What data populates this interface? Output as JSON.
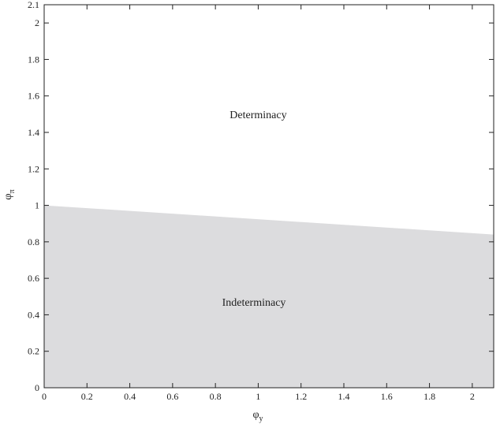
{
  "chart_data": {
    "type": "area",
    "xlabel": "φ",
    "xlabel_sub": "y",
    "ylabel": "φ",
    "ylabel_sub": "π",
    "xlim": [
      0,
      2.1
    ],
    "ylim": [
      0,
      2.1
    ],
    "x_ticks": [
      {
        "value": 0,
        "label": "0"
      },
      {
        "value": 0.2,
        "label": "0.2"
      },
      {
        "value": 0.4,
        "label": "0.4"
      },
      {
        "value": 0.6,
        "label": "0.6"
      },
      {
        "value": 0.8,
        "label": "0.8"
      },
      {
        "value": 1,
        "label": "1"
      },
      {
        "value": 1.2,
        "label": "1.2"
      },
      {
        "value": 1.4,
        "label": "1.4"
      },
      {
        "value": 1.6,
        "label": "1.6"
      },
      {
        "value": 1.8,
        "label": "1.8"
      },
      {
        "value": 2,
        "label": "2"
      }
    ],
    "y_ticks": [
      {
        "value": 0,
        "label": "0"
      },
      {
        "value": 0.2,
        "label": "0.2"
      },
      {
        "value": 0.4,
        "label": "0.4"
      },
      {
        "value": 0.6,
        "label": "0.6"
      },
      {
        "value": 0.8,
        "label": "0.8"
      },
      {
        "value": 1,
        "label": "1"
      },
      {
        "value": 1.2,
        "label": "1.2"
      },
      {
        "value": 1.4,
        "label": "1.4"
      },
      {
        "value": 1.6,
        "label": "1.6"
      },
      {
        "value": 1.8,
        "label": "1.8"
      },
      {
        "value": 2,
        "label": "2"
      },
      {
        "value": 2.1,
        "label": "2.1"
      }
    ],
    "boundary": {
      "x": [
        0,
        2.1
      ],
      "y": [
        1.0,
        0.84
      ]
    },
    "regions": [
      {
        "label": "Determinacy",
        "x": 1.0,
        "y": 1.5
      },
      {
        "label": "Indeterminacy",
        "x": 0.98,
        "y": 0.47
      }
    ],
    "fill_color": "#dcdcde",
    "grid": false
  }
}
